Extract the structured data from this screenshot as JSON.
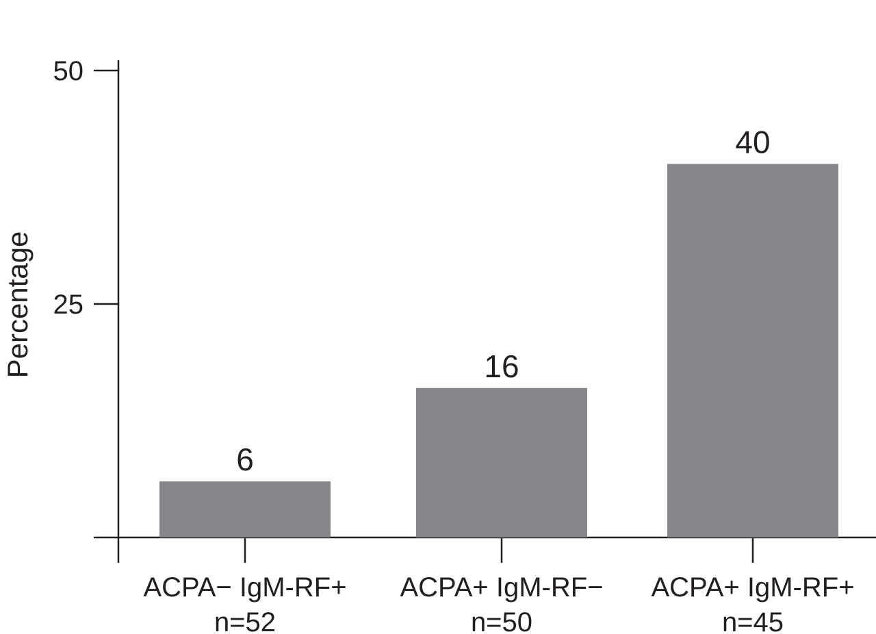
{
  "chart_data": {
    "type": "bar",
    "title": "",
    "xlabel": "",
    "ylabel": "Percentage",
    "ylim": [
      0,
      50
    ],
    "yticks": [
      25,
      50
    ],
    "categories": [
      "ACPA− IgM-RF+",
      "ACPA+ IgM-RF−",
      "ACPA+ IgM-RF+"
    ],
    "sample_sizes": [
      "n=52",
      "n=50",
      "n=45"
    ],
    "values": [
      6,
      16,
      40
    ],
    "data_labels": [
      "6",
      "16",
      "40"
    ],
    "bar_color": "#858689",
    "axis_color": "#231f20",
    "grid": false,
    "legend": "none"
  }
}
